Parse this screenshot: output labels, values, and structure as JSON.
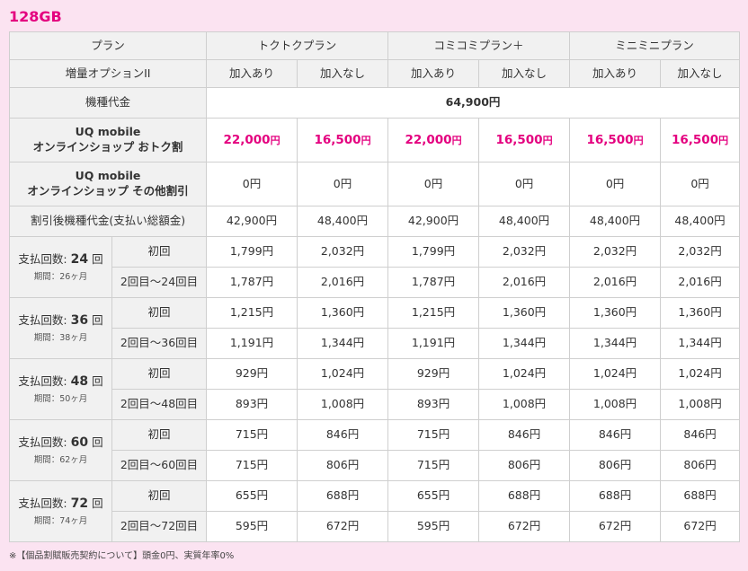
{
  "heading": "128GB",
  "header": {
    "plan": "プラン",
    "plans": [
      "トクトクプラン",
      "コミコミプラン＋",
      "ミニミニプラン"
    ],
    "option": "増量オプションII",
    "sub": [
      "加入あり",
      "加入なし",
      "加入あり",
      "加入なし",
      "加入あり",
      "加入なし"
    ]
  },
  "device_price": {
    "label": "機種代金",
    "value": "64,900円"
  },
  "discount1": {
    "line1": "UQ mobile",
    "line2": "オンラインショップ おトク割",
    "values": [
      "22,000",
      "16,500",
      "22,000",
      "16,500",
      "16,500",
      "16,500"
    ],
    "unit": "円"
  },
  "discount2": {
    "line1": "UQ mobile",
    "line2": "オンラインショップ その他割引",
    "values": [
      "0円",
      "0円",
      "0円",
      "0円",
      "0円",
      "0円"
    ]
  },
  "after": {
    "label": "割引後機種代金(支払い総額金)",
    "values": [
      "42,900円",
      "48,400円",
      "42,900円",
      "48,400円",
      "48,400円",
      "48,400円"
    ]
  },
  "payments": [
    {
      "prefix": "支払回数:",
      "count": "24",
      "suffix": "回",
      "period": "期間：26ヶ月",
      "first_label": "初回",
      "rest_label": "2回目〜24回目",
      "first": [
        "1,799円",
        "2,032円",
        "1,799円",
        "2,032円",
        "2,032円",
        "2,032円"
      ],
      "rest": [
        "1,787円",
        "2,016円",
        "1,787円",
        "2,016円",
        "2,016円",
        "2,016円"
      ]
    },
    {
      "prefix": "支払回数:",
      "count": "36",
      "suffix": "回",
      "period": "期間：38ヶ月",
      "first_label": "初回",
      "rest_label": "2回目〜36回目",
      "first": [
        "1,215円",
        "1,360円",
        "1,215円",
        "1,360円",
        "1,360円",
        "1,360円"
      ],
      "rest": [
        "1,191円",
        "1,344円",
        "1,191円",
        "1,344円",
        "1,344円",
        "1,344円"
      ]
    },
    {
      "prefix": "支払回数:",
      "count": "48",
      "suffix": "回",
      "period": "期間：50ヶ月",
      "first_label": "初回",
      "rest_label": "2回目〜48回目",
      "first": [
        "929円",
        "1,024円",
        "929円",
        "1,024円",
        "1,024円",
        "1,024円"
      ],
      "rest": [
        "893円",
        "1,008円",
        "893円",
        "1,008円",
        "1,008円",
        "1,008円"
      ]
    },
    {
      "prefix": "支払回数:",
      "count": "60",
      "suffix": "回",
      "period": "期間：62ヶ月",
      "first_label": "初回",
      "rest_label": "2回目〜60回目",
      "first": [
        "715円",
        "846円",
        "715円",
        "846円",
        "846円",
        "846円"
      ],
      "rest": [
        "715円",
        "806円",
        "715円",
        "806円",
        "806円",
        "806円"
      ]
    },
    {
      "prefix": "支払回数:",
      "count": "72",
      "suffix": "回",
      "period": "期間：74ヶ月",
      "first_label": "初回",
      "rest_label": "2回目〜72回目",
      "first": [
        "655円",
        "688円",
        "655円",
        "688円",
        "688円",
        "688円"
      ],
      "rest": [
        "595円",
        "672円",
        "595円",
        "672円",
        "672円",
        "672円"
      ]
    }
  ],
  "footnote": "※【個品割賦販売契約について】頭金0円、実質年率0%",
  "colors": {
    "accent": "#e4007f",
    "page_bg": "#fbe3f1",
    "header_bg": "#f1f1f1",
    "border": "#cfcfcf"
  }
}
